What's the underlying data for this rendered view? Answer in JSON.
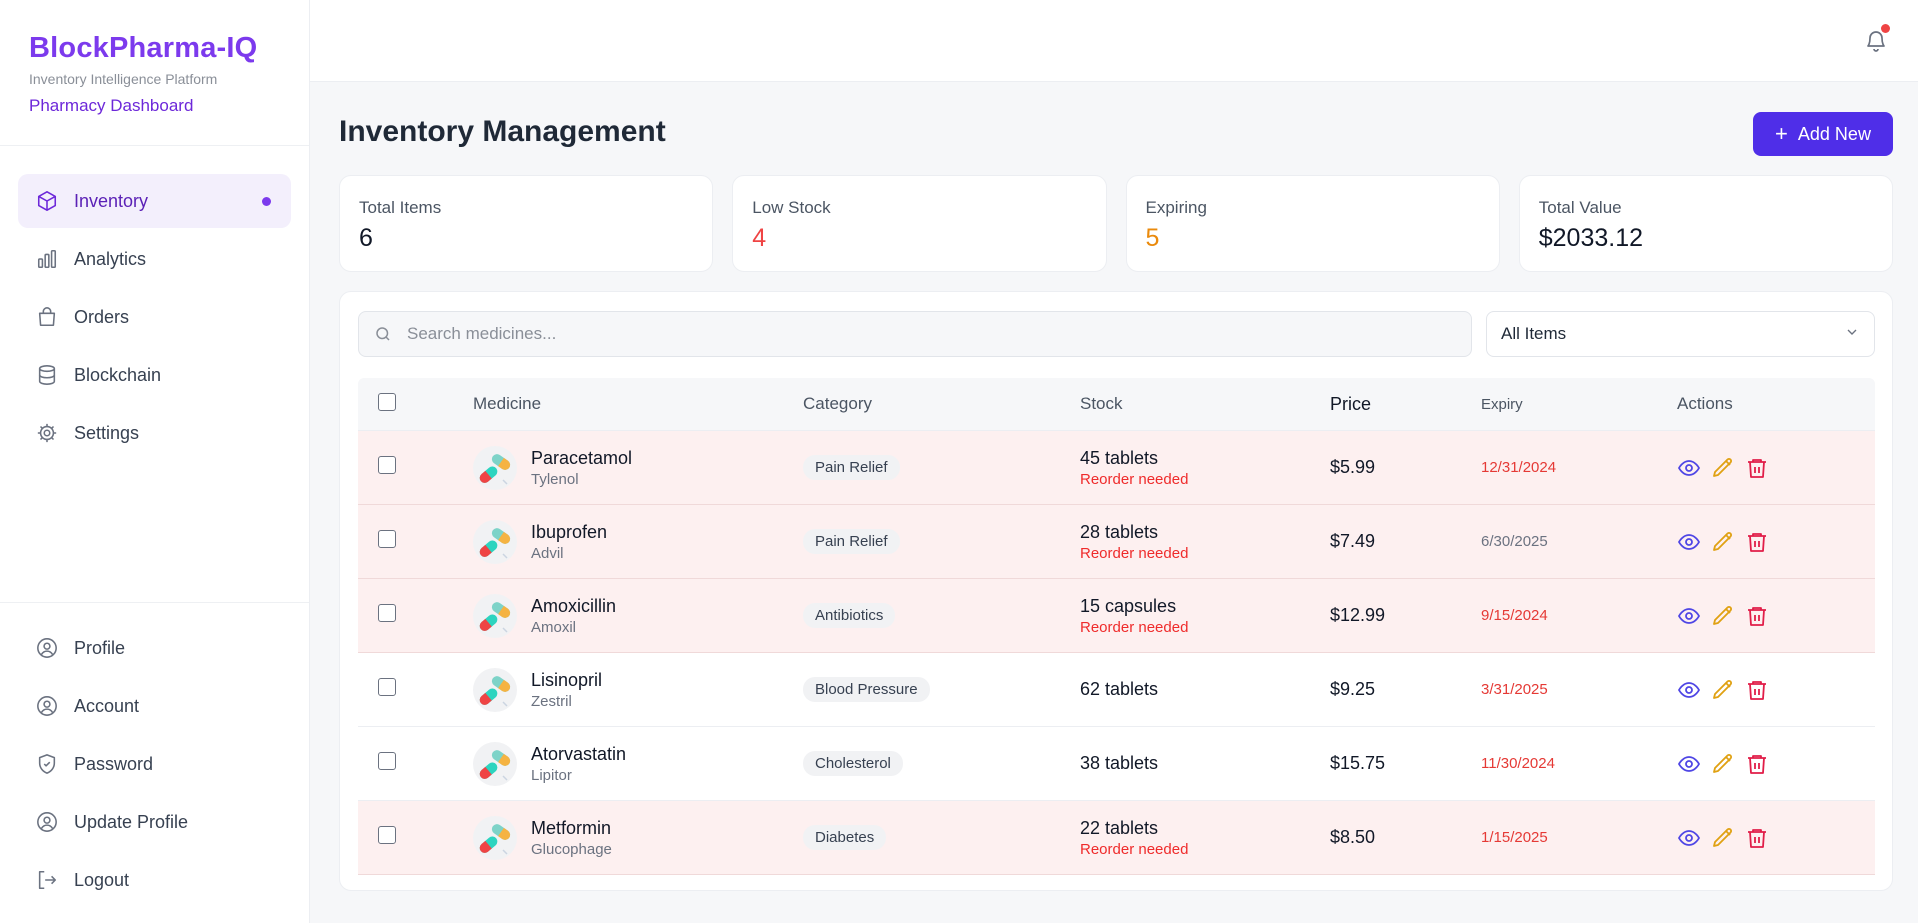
{
  "brand": {
    "title": "BlockPharma-IQ",
    "subtitle": "Inventory Intelligence Platform",
    "dashboard": "Pharmacy Dashboard"
  },
  "nav": {
    "main": [
      {
        "label": "Inventory",
        "icon": "box-icon",
        "active": true
      },
      {
        "label": "Analytics",
        "icon": "bar-chart-icon"
      },
      {
        "label": "Orders",
        "icon": "shopping-bag-icon"
      },
      {
        "label": "Blockchain",
        "icon": "database-icon"
      },
      {
        "label": "Settings",
        "icon": "gear-icon"
      }
    ],
    "bottom": [
      {
        "label": "Profile",
        "icon": "user-circle-icon"
      },
      {
        "label": "Account",
        "icon": "user-circle-icon"
      },
      {
        "label": "Password",
        "icon": "shield-icon"
      },
      {
        "label": "Update Profile",
        "icon": "user-circle-icon"
      },
      {
        "label": "Logout",
        "icon": "logout-icon"
      }
    ]
  },
  "header": {
    "title": "Inventory Management",
    "add_label": "Add New"
  },
  "stats": {
    "total_items": {
      "label": "Total Items",
      "value": "6"
    },
    "low_stock": {
      "label": "Low Stock",
      "value": "4"
    },
    "expiring": {
      "label": "Expiring",
      "value": "5"
    },
    "total_value": {
      "label": "Total Value",
      "value": "$2033.12"
    }
  },
  "search": {
    "placeholder": "Search medicines..."
  },
  "filter": {
    "selected": "All Items"
  },
  "table": {
    "columns": [
      "Medicine",
      "Category",
      "Stock",
      "Price",
      "Expiry",
      "Actions"
    ],
    "rows": [
      {
        "name": "Paracetamol",
        "brand": "Tylenol",
        "category": "Pain Relief",
        "stock": "45 tablets",
        "warning": "Reorder needed",
        "price": "$5.99",
        "expiry": "12/31/2024",
        "expiring": true
      },
      {
        "name": "Ibuprofen",
        "brand": "Advil",
        "category": "Pain Relief",
        "stock": "28 tablets",
        "warning": "Reorder needed",
        "price": "$7.49",
        "expiry": "6/30/2025",
        "expiring": false
      },
      {
        "name": "Amoxicillin",
        "brand": "Amoxil",
        "category": "Antibiotics",
        "stock": "15 capsules",
        "warning": "Reorder needed",
        "price": "$12.99",
        "expiry": "9/15/2024",
        "expiring": true
      },
      {
        "name": "Lisinopril",
        "brand": "Zestril",
        "category": "Blood Pressure",
        "stock": "62 tablets",
        "warning": "",
        "price": "$9.25",
        "expiry": "3/31/2025",
        "expiring": true
      },
      {
        "name": "Atorvastatin",
        "brand": "Lipitor",
        "category": "Cholesterol",
        "stock": "38 tablets",
        "warning": "",
        "price": "$15.75",
        "expiry": "11/30/2024",
        "expiring": true
      },
      {
        "name": "Metformin",
        "brand": "Glucophage",
        "category": "Diabetes",
        "stock": "22 tablets",
        "warning": "Reorder needed",
        "price": "$8.50",
        "expiry": "1/15/2025",
        "expiring": true
      }
    ]
  },
  "colors": {
    "brand": "#7c3aed",
    "primary_button": "#4f2ee8",
    "danger": "#ef4444",
    "warning": "#ea8a0c",
    "low_stock_row": "#fdf0f0"
  }
}
